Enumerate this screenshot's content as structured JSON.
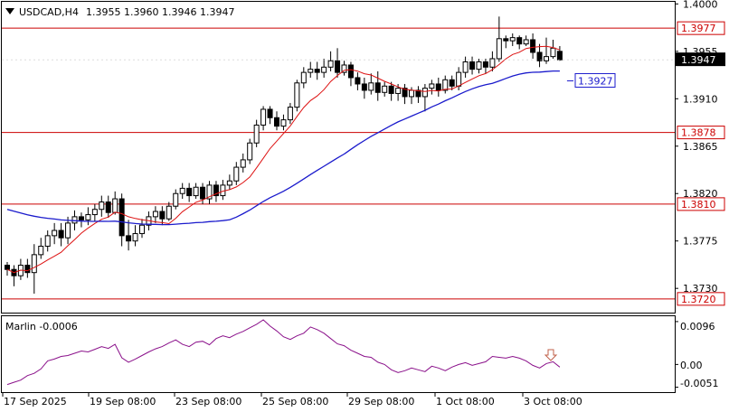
{
  "header": {
    "symbol_tf": "USDCAD,H4",
    "ohlc": "1.3955 1.3960 1.3946 1.3947",
    "menu_icon": "triangle-down-icon"
  },
  "indicator": {
    "label": "Marlin -0.0006",
    "ticks": [
      "0.0096",
      "0.00",
      "-0.0051"
    ]
  },
  "chart_data": [
    {
      "type": "candlestick",
      "price_ticks": [
        "1.4000",
        "1.3955",
        "1.3910",
        "1.3865",
        "1.3820",
        "1.3775",
        "1.3730"
      ],
      "ylim": [
        1.3707,
        1.4002
      ],
      "time_labels": [
        "17 Sep 2025",
        "19 Sep 08:00",
        "23 Sep 08:00",
        "25 Sep 08:00",
        "29 Sep 08:00",
        "1 Oct 08:00",
        "3 Oct 08:00"
      ],
      "current_price": "1.3947",
      "levels": [
        {
          "value": 1.3977,
          "label": "1.3977"
        },
        {
          "value": 1.3878,
          "label": "1.3878"
        },
        {
          "value": 1.381,
          "label": "1.3810"
        },
        {
          "value": 1.372,
          "label": "1.3720"
        }
      ],
      "ma_label": "1.3927",
      "candles": [
        [
          1.3752,
          1.3748,
          1.3742,
          1.3755
        ],
        [
          1.3748,
          1.3742,
          1.3732,
          1.3752
        ],
        [
          1.3742,
          1.3752,
          1.3738,
          1.3758
        ],
        [
          1.3752,
          1.3745,
          1.374,
          1.3758
        ],
        [
          1.3745,
          1.3762,
          1.3725,
          1.3772
        ],
        [
          1.3762,
          1.377,
          1.3758,
          1.3778
        ],
        [
          1.377,
          1.378,
          1.3765,
          1.3785
        ],
        [
          1.378,
          1.3785,
          1.3772,
          1.3792
        ],
        [
          1.3785,
          1.3778,
          1.377,
          1.3792
        ],
        [
          1.3778,
          1.3792,
          1.3772,
          1.3798
        ],
        [
          1.3792,
          1.3798,
          1.3785,
          1.3804
        ],
        [
          1.3798,
          1.3795,
          1.3788,
          1.3802
        ],
        [
          1.3795,
          1.38,
          1.379,
          1.3807
        ],
        [
          1.38,
          1.3805,
          1.3794,
          1.381
        ],
        [
          1.3805,
          1.3812,
          1.3798,
          1.3818
        ],
        [
          1.3812,
          1.3802,
          1.3797,
          1.3818
        ],
        [
          1.3802,
          1.3815,
          1.38,
          1.3822
        ],
        [
          1.3815,
          1.378,
          1.377,
          1.382
        ],
        [
          1.378,
          1.3775,
          1.3766,
          1.3795
        ],
        [
          1.3775,
          1.3782,
          1.377,
          1.379
        ],
        [
          1.3782,
          1.379,
          1.3778,
          1.3796
        ],
        [
          1.379,
          1.3798,
          1.3785,
          1.3803
        ],
        [
          1.3798,
          1.3803,
          1.3792,
          1.3808
        ],
        [
          1.3803,
          1.3796,
          1.379,
          1.3808
        ],
        [
          1.3796,
          1.3808,
          1.3794,
          1.3812
        ],
        [
          1.3808,
          1.382,
          1.3805,
          1.3824
        ],
        [
          1.382,
          1.3825,
          1.3815,
          1.383
        ],
        [
          1.3825,
          1.3818,
          1.3812,
          1.383
        ],
        [
          1.3818,
          1.3826,
          1.3815,
          1.383
        ],
        [
          1.3826,
          1.3815,
          1.381,
          1.383
        ],
        [
          1.3815,
          1.3828,
          1.381,
          1.3832
        ],
        [
          1.3828,
          1.3818,
          1.3812,
          1.3832
        ],
        [
          1.3818,
          1.3828,
          1.3814,
          1.3833
        ],
        [
          1.3828,
          1.3832,
          1.3824,
          1.3838
        ],
        [
          1.3832,
          1.3845,
          1.3828,
          1.385
        ],
        [
          1.3845,
          1.3852,
          1.384,
          1.3858
        ],
        [
          1.3852,
          1.3868,
          1.3848,
          1.3872
        ],
        [
          1.3868,
          1.3885,
          1.3864,
          1.389
        ],
        [
          1.3885,
          1.39,
          1.388,
          1.3903
        ],
        [
          1.39,
          1.3892,
          1.3886,
          1.3903
        ],
        [
          1.3892,
          1.3884,
          1.388,
          1.3898
        ],
        [
          1.3884,
          1.389,
          1.388,
          1.3895
        ],
        [
          1.389,
          1.3902,
          1.3886,
          1.3906
        ],
        [
          1.3902,
          1.3925,
          1.3898,
          1.3928
        ],
        [
          1.3925,
          1.3935,
          1.392,
          1.394
        ],
        [
          1.3935,
          1.3938,
          1.393,
          1.3945
        ],
        [
          1.3938,
          1.3935,
          1.3928,
          1.3945
        ],
        [
          1.3935,
          1.394,
          1.393,
          1.3948
        ],
        [
          1.394,
          1.3946,
          1.3936,
          1.3955
        ],
        [
          1.3946,
          1.3935,
          1.393,
          1.3958
        ],
        [
          1.3935,
          1.3942,
          1.3932,
          1.3946
        ],
        [
          1.3942,
          1.393,
          1.3922,
          1.3945
        ],
        [
          1.393,
          1.3924,
          1.3918,
          1.3935
        ],
        [
          1.3924,
          1.3918,
          1.391,
          1.393
        ],
        [
          1.3918,
          1.3925,
          1.3914,
          1.3934
        ],
        [
          1.3925,
          1.3916,
          1.3908,
          1.3936
        ],
        [
          1.3916,
          1.3922,
          1.3912,
          1.3926
        ],
        [
          1.3922,
          1.3915,
          1.3908,
          1.3926
        ],
        [
          1.3915,
          1.392,
          1.3908,
          1.3924
        ],
        [
          1.392,
          1.3912,
          1.3905,
          1.3924
        ],
        [
          1.3912,
          1.3918,
          1.3905,
          1.3921
        ],
        [
          1.3918,
          1.3912,
          1.3906,
          1.3922
        ],
        [
          1.3912,
          1.392,
          1.3898,
          1.3924
        ],
        [
          1.392,
          1.3924,
          1.3914,
          1.3928
        ],
        [
          1.3924,
          1.3918,
          1.3912,
          1.393
        ],
        [
          1.3918,
          1.3928,
          1.3915,
          1.3932
        ],
        [
          1.3928,
          1.3922,
          1.3918,
          1.3932
        ],
        [
          1.3922,
          1.3935,
          1.3918,
          1.394
        ],
        [
          1.3935,
          1.3945,
          1.393,
          1.395
        ],
        [
          1.3945,
          1.3938,
          1.3933,
          1.395
        ],
        [
          1.3938,
          1.3945,
          1.3934,
          1.3948
        ],
        [
          1.3945,
          1.394,
          1.3934,
          1.3948
        ],
        [
          1.394,
          1.3948,
          1.3936,
          1.3955
        ],
        [
          1.3948,
          1.3967,
          1.3945,
          1.3988
        ],
        [
          1.3967,
          1.3965,
          1.3958,
          1.397
        ],
        [
          1.3965,
          1.3968,
          1.396,
          1.3972
        ],
        [
          1.3968,
          1.3962,
          1.3957,
          1.397
        ],
        [
          1.3962,
          1.3966,
          1.396,
          1.397
        ],
        [
          1.3966,
          1.3954,
          1.3948,
          1.3972
        ],
        [
          1.3954,
          1.3946,
          1.394,
          1.3962
        ],
        [
          1.3946,
          1.395,
          1.3943,
          1.3968
        ],
        [
          1.395,
          1.3958,
          1.3948,
          1.3966
        ],
        [
          1.3955,
          1.3947,
          1.3946,
          1.396
        ]
      ]
    },
    {
      "type": "line",
      "name": "Marlin",
      "ylim": [
        -0.0062,
        0.0108
      ],
      "values": [
        -0.0045,
        -0.004,
        -0.0035,
        -0.0025,
        -0.002,
        -0.001,
        0.0008,
        0.0012,
        0.0018,
        0.002,
        0.0025,
        0.003,
        0.0028,
        0.0034,
        0.004,
        0.0036,
        0.0045,
        0.0015,
        0.0005,
        0.0012,
        0.002,
        0.0028,
        0.0035,
        0.004,
        0.0048,
        0.0055,
        0.0045,
        0.004,
        0.005,
        0.0052,
        0.0044,
        0.0058,
        0.0064,
        0.006,
        0.0068,
        0.0074,
        0.0082,
        0.009,
        0.01,
        0.0086,
        0.0075,
        0.0062,
        0.0056,
        0.0064,
        0.007,
        0.0084,
        0.0078,
        0.007,
        0.0058,
        0.0046,
        0.0042,
        0.0032,
        0.0025,
        0.0018,
        0.0016,
        0.0005,
        0.0,
        -0.0012,
        -0.0018,
        -0.0014,
        -0.0008,
        -0.0012,
        -0.0016,
        -0.0004,
        -0.0008,
        -0.0014,
        -0.0006,
        0.0,
        0.0004,
        -0.0002,
        0.0002,
        0.0006,
        0.0018,
        0.0016,
        0.0014,
        0.0018,
        0.0014,
        0.0008,
        -0.0002,
        -0.0008,
        0.0002,
        0.0006,
        -0.0006
      ]
    }
  ],
  "colors": {
    "candle": "#000000",
    "level_line": "#cc0000",
    "fast_ma": "#dd1111",
    "slow_ma": "#1a1acc",
    "oscillator": "#8a108a",
    "arrow": "#c0604a"
  }
}
